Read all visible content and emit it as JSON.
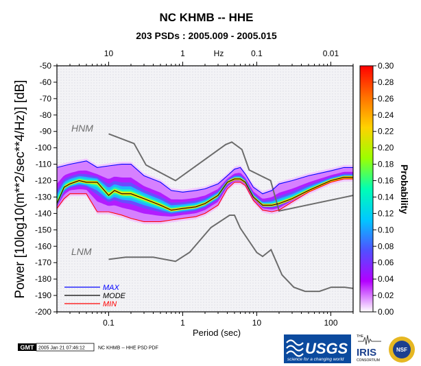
{
  "chart_data": {
    "type": "heatmap",
    "title": "NC KHMB -- HHE",
    "subtitle": "203 PSDs : 2005.009 - 2005.015",
    "xlabel": "Period (sec)",
    "ylabel": "Power [10log10(m**2/sec**4/Hz)] [dB]",
    "top_axis_label": "Hz",
    "x_scale": "log",
    "xlim": [
      0.02,
      200
    ],
    "ylim": [
      -200,
      -50
    ],
    "x_ticks_bottom": [
      {
        "value": 0.1,
        "label": "0.1"
      },
      {
        "value": 1,
        "label": "1"
      },
      {
        "value": 10,
        "label": "10"
      },
      {
        "value": 100,
        "label": "100"
      }
    ],
    "x_ticks_top": [
      {
        "value": 0.1,
        "label": "10"
      },
      {
        "value": 1,
        "label": "1"
      },
      {
        "value": 10,
        "label": "0.1"
      },
      {
        "value": 100,
        "label": "0.01"
      }
    ],
    "y_ticks": [
      -50,
      -60,
      -70,
      -80,
      -90,
      -100,
      -110,
      -120,
      -130,
      -140,
      -150,
      -160,
      -170,
      -180,
      -190,
      -200
    ],
    "colorbar": {
      "label": "Probability",
      "min": 0.0,
      "max": 0.3,
      "ticks": [
        "0.00",
        "0.02",
        "0.04",
        "0.06",
        "0.08",
        "0.10",
        "0.12",
        "0.14",
        "0.16",
        "0.18",
        "0.20",
        "0.22",
        "0.24",
        "0.26",
        "0.28",
        "0.30"
      ],
      "colors": [
        "#ffffff",
        "#b300ff",
        "#5050ff",
        "#00c8ff",
        "#00ffb4",
        "#9cff00",
        "#ffd200",
        "#ff7000",
        "#ff0000"
      ]
    },
    "series": [
      {
        "name": "MAX",
        "color": "#0000ff",
        "x": [
          0.02,
          0.03,
          0.05,
          0.07,
          0.1,
          0.15,
          0.2,
          0.3,
          0.5,
          0.7,
          1.0,
          1.5,
          2.0,
          3.0,
          4.0,
          5.0,
          6.0,
          7.0,
          9.0,
          12.0,
          16.0,
          20.0,
          30.0,
          50.0,
          100.0,
          150.0,
          200.0
        ],
        "y": [
          -112,
          -110,
          -108,
          -112,
          -111,
          -110,
          -110,
          -117,
          -121,
          -126,
          -127,
          -126,
          -125,
          -122,
          -117,
          -113,
          -112,
          -116,
          -124,
          -128,
          -126,
          -122,
          -120,
          -117,
          -114,
          -112,
          -112
        ]
      },
      {
        "name": "MODE",
        "color": "#000000",
        "x": [
          0.02,
          0.025,
          0.03,
          0.04,
          0.05,
          0.07,
          0.1,
          0.12,
          0.15,
          0.2,
          0.3,
          0.5,
          0.7,
          1.0,
          1.5,
          2.0,
          3.0,
          4.0,
          5.0,
          6.0,
          7.0,
          9.0,
          12.0,
          16.0,
          20.0,
          30.0,
          50.0,
          100.0,
          150.0,
          200.0
        ],
        "y": [
          -134,
          -124,
          -122,
          -120,
          -121,
          -121,
          -129,
          -126,
          -128,
          -128,
          -131,
          -135,
          -138,
          -137,
          -136,
          -134,
          -129,
          -121,
          -119,
          -119,
          -121,
          -130,
          -135,
          -135,
          -134,
          -131,
          -126,
          -120,
          -118,
          -118
        ]
      },
      {
        "name": "MIN",
        "color": "#ff0000",
        "x": [
          0.02,
          0.025,
          0.03,
          0.04,
          0.05,
          0.07,
          0.1,
          0.15,
          0.2,
          0.3,
          0.5,
          0.7,
          1.0,
          1.5,
          2.0,
          3.0,
          4.0,
          5.0,
          6.0,
          7.0,
          9.0,
          12.0,
          16.0,
          20.0,
          30.0,
          50.0,
          100.0,
          150.0,
          200.0
        ],
        "y": [
          -137,
          -131,
          -128,
          -128,
          -128,
          -139,
          -139,
          -141,
          -143,
          -145,
          -145,
          -144,
          -143,
          -142,
          -140,
          -135,
          -125,
          -121,
          -121,
          -123,
          -132,
          -138,
          -139,
          -138,
          -133,
          -127,
          -121,
          -119,
          -119
        ]
      }
    ],
    "noise_models": [
      {
        "name": "HNM",
        "x": [
          0.1,
          0.22,
          0.32,
          0.8,
          3.8,
          4.6,
          6.3,
          7.9,
          15.4,
          20.0,
          200.0
        ],
        "y": [
          -91.5,
          -97.4,
          -110.5,
          -120.0,
          -98.0,
          -96.5,
          -101.0,
          -113.5,
          -120.0,
          -138.5,
          -129.0
        ]
      },
      {
        "name": "LNM",
        "x": [
          0.1,
          0.17,
          0.4,
          0.8,
          1.24,
          2.4,
          4.3,
          5.0,
          6.0,
          10.0,
          12.0,
          15.6,
          21.9,
          31.6,
          45.0,
          70.0,
          101.0,
          154.0,
          200.0
        ],
        "y": [
          -168.0,
          -166.7,
          -166.7,
          -169.2,
          -163.7,
          -148.6,
          -141.1,
          -141.1,
          -149.0,
          -163.8,
          -166.2,
          -162.1,
          -177.5,
          -185.0,
          -187.5,
          -187.5,
          -185.0,
          -185.0,
          -185.7
        ]
      }
    ],
    "legend": {
      "position": "bottom-left",
      "entries": [
        "MAX",
        "MODE",
        "MIN"
      ]
    },
    "noise_model_labels": [
      "HNM",
      "LNM"
    ]
  },
  "footer": {
    "gmt_logo": "GMT",
    "timestamp": "2005 Jan 21 07:46:12",
    "caption": "NC KHMB -- HHE PSD PDF"
  },
  "logos": [
    {
      "name": "usgs-logo",
      "text": "USGS",
      "tagline": "science for a changing world"
    },
    {
      "name": "iris-logo",
      "text": "IRIS",
      "tagline": "CONSORTIUM",
      "prefix": "THE"
    },
    {
      "name": "nsf-logo",
      "text": "NSF"
    }
  ]
}
